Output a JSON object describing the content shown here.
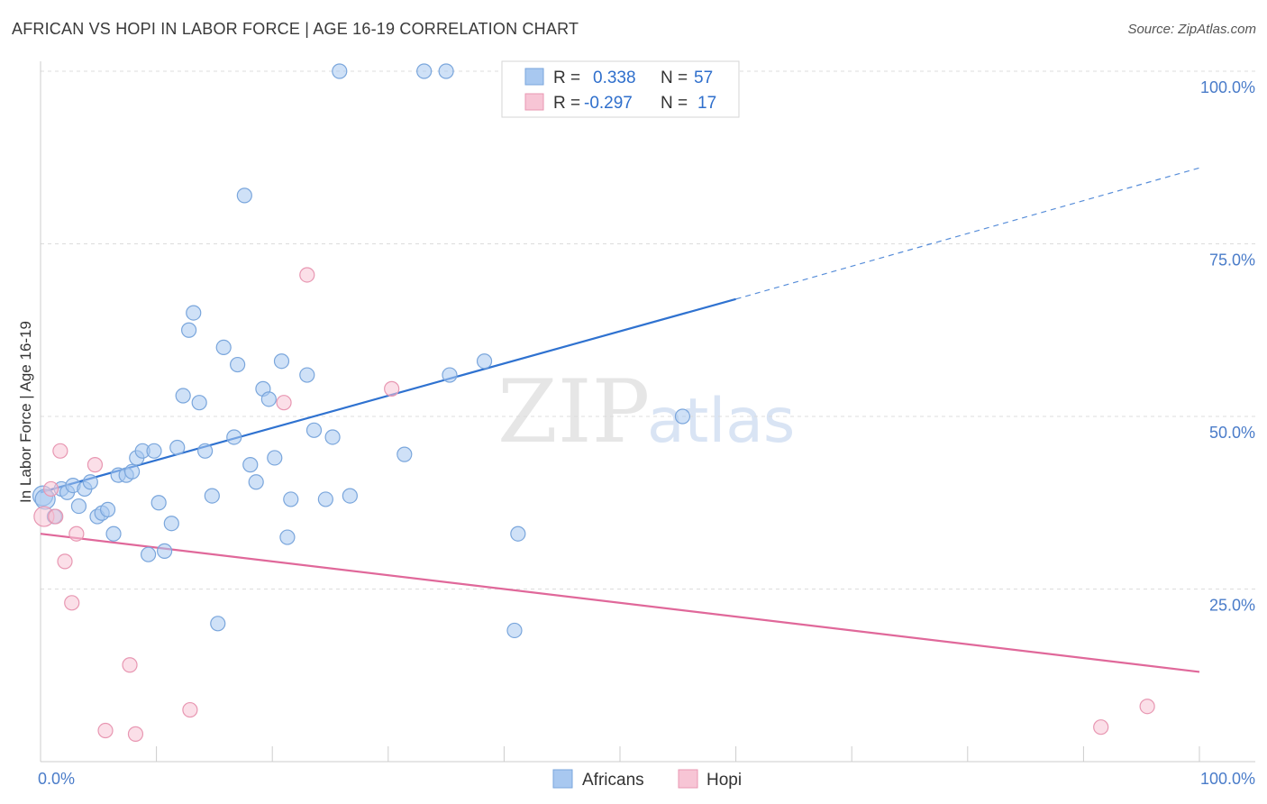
{
  "title": "AFRICAN VS HOPI IN LABOR FORCE | AGE 16-19 CORRELATION CHART",
  "source": "Source: ZipAtlas.com",
  "colors": {
    "africans": "#a8c8f0",
    "africans_stroke": "#7aa6dc",
    "africans_line": "#2f72d0",
    "hopi": "#f7c5d5",
    "hopi_stroke": "#e897b2",
    "hopi_line": "#e0689a",
    "axis_label": "#4a7cc9"
  },
  "legend": {
    "africans": {
      "r_label": "R =",
      "r_value": "0.338",
      "n_label": "N =",
      "n_value": "57"
    },
    "hopi": {
      "r_label": "R =",
      "r_value": "-0.297",
      "n_label": "N =",
      "n_value": "17"
    }
  },
  "watermark": {
    "zip": "ZIP",
    "atlas": "atlas"
  },
  "chart_data": {
    "type": "scatter",
    "title": "AFRICAN VS HOPI IN LABOR FORCE | AGE 16-19 CORRELATION CHART",
    "xlabel": "",
    "ylabel": "In Labor Force | Age 16-19",
    "xlim": [
      0,
      100
    ],
    "ylim": [
      0,
      100
    ],
    "x_tick_labels": [
      "0.0%",
      "100.0%"
    ],
    "y_ticks": [
      25,
      50,
      75,
      100
    ],
    "y_tick_labels": [
      "25.0%",
      "50.0%",
      "75.0%",
      "100.0%"
    ],
    "grid": true,
    "legend_position": "top-center",
    "series": [
      {
        "name": "Africans",
        "points": [
          [
            0.2,
            38.5
          ],
          [
            0.4,
            38.0
          ],
          [
            1.2,
            35.5
          ],
          [
            1.8,
            39.5
          ],
          [
            2.3,
            39.0
          ],
          [
            2.8,
            40.0
          ],
          [
            3.3,
            37.0
          ],
          [
            3.8,
            39.5
          ],
          [
            4.3,
            40.5
          ],
          [
            4.9,
            35.5
          ],
          [
            5.3,
            36.0
          ],
          [
            5.8,
            36.5
          ],
          [
            6.3,
            33.0
          ],
          [
            6.7,
            41.5
          ],
          [
            7.4,
            41.5
          ],
          [
            7.9,
            42.0
          ],
          [
            8.3,
            44.0
          ],
          [
            8.8,
            45.0
          ],
          [
            9.3,
            30.0
          ],
          [
            9.8,
            45.0
          ],
          [
            10.2,
            37.5
          ],
          [
            10.7,
            30.5
          ],
          [
            11.3,
            34.5
          ],
          [
            11.8,
            45.5
          ],
          [
            12.3,
            53.0
          ],
          [
            12.8,
            62.5
          ],
          [
            13.2,
            65.0
          ],
          [
            13.7,
            52.0
          ],
          [
            14.2,
            45.0
          ],
          [
            14.8,
            38.5
          ],
          [
            15.3,
            20.0
          ],
          [
            15.8,
            60.0
          ],
          [
            16.7,
            47.0
          ],
          [
            17.0,
            57.5
          ],
          [
            17.6,
            82.0
          ],
          [
            18.1,
            43.0
          ],
          [
            18.6,
            40.5
          ],
          [
            19.2,
            54.0
          ],
          [
            19.7,
            52.5
          ],
          [
            20.2,
            44.0
          ],
          [
            20.8,
            58.0
          ],
          [
            21.3,
            32.5
          ],
          [
            21.6,
            38.0
          ],
          [
            23.0,
            56.0
          ],
          [
            23.6,
            48.0
          ],
          [
            25.2,
            47.0
          ],
          [
            24.6,
            38.0
          ],
          [
            26.7,
            38.5
          ],
          [
            25.8,
            100.0
          ],
          [
            31.4,
            44.5
          ],
          [
            33.1,
            100.0
          ],
          [
            35.0,
            100.0
          ],
          [
            35.3,
            56.0
          ],
          [
            38.3,
            58.0
          ],
          [
            41.2,
            33.0
          ],
          [
            40.9,
            19.0
          ],
          [
            55.4,
            50.0
          ]
        ]
      },
      {
        "name": "Hopi",
        "points": [
          [
            0.3,
            35.5
          ],
          [
            0.9,
            39.5
          ],
          [
            1.3,
            35.5
          ],
          [
            1.7,
            45.0
          ],
          [
            2.1,
            29.0
          ],
          [
            2.7,
            23.0
          ],
          [
            3.1,
            33.0
          ],
          [
            4.7,
            43.0
          ],
          [
            5.6,
            4.5
          ],
          [
            7.7,
            14.0
          ],
          [
            8.2,
            4.0
          ],
          [
            12.9,
            7.5
          ],
          [
            21.0,
            52.0
          ],
          [
            23.0,
            70.5
          ],
          [
            30.3,
            54.0
          ],
          [
            91.5,
            5.0
          ],
          [
            95.5,
            8.0
          ]
        ]
      }
    ],
    "trendlines": [
      {
        "series": "Africans",
        "from": [
          0,
          39.0
        ],
        "solid_to": [
          60,
          67.0
        ],
        "dashed_to": [
          100,
          86.0
        ]
      },
      {
        "series": "Hopi",
        "from": [
          0,
          33.0
        ],
        "to": [
          100,
          13.0
        ]
      }
    ]
  }
}
